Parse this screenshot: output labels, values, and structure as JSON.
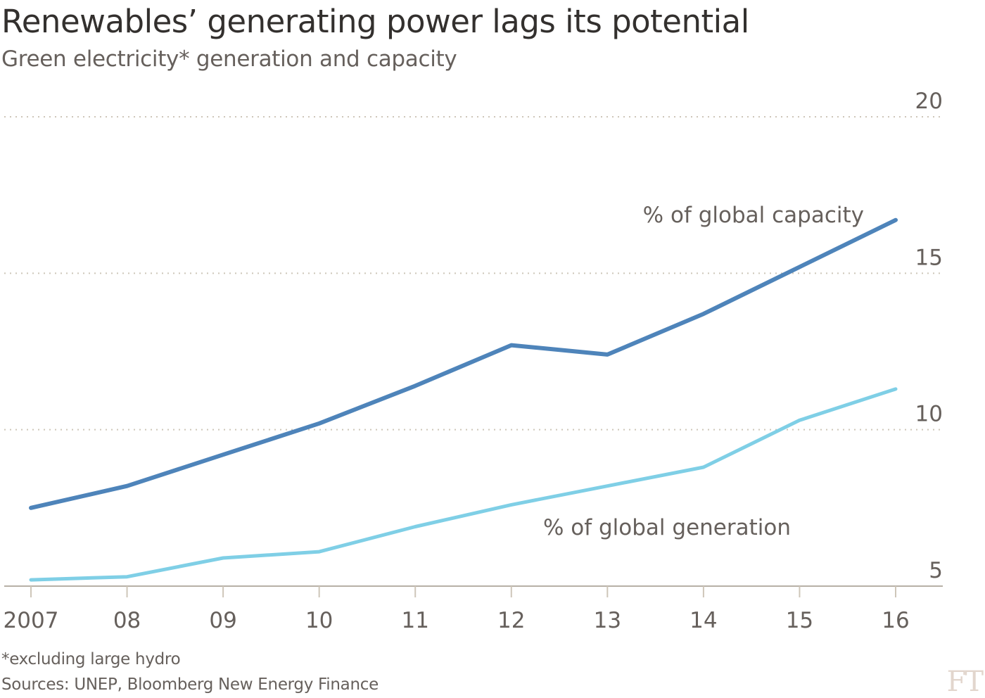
{
  "chart_data": {
    "type": "line",
    "title": "Renewables’ generating power lags its potential",
    "subtitle": "Green electricity* generation and capacity",
    "x": [
      "2007",
      "08",
      "09",
      "10",
      "11",
      "12",
      "13",
      "14",
      "15",
      "16"
    ],
    "series": [
      {
        "name": "% of global capacity",
        "color": "#4e84ba",
        "values": [
          7.5,
          8.2,
          9.2,
          10.2,
          11.4,
          12.7,
          12.4,
          13.7,
          15.2,
          16.7
        ]
      },
      {
        "name": "% of global generation",
        "color": "#7fcfe6",
        "values": [
          5.2,
          5.3,
          5.9,
          6.1,
          6.9,
          7.6,
          8.2,
          8.8,
          10.3,
          11.3
        ]
      }
    ],
    "yticks": [
      "5",
      "10",
      "15",
      "20"
    ],
    "ytick_values": [
      5,
      10,
      15,
      20
    ],
    "ylim": [
      5,
      20
    ],
    "xlabel": "",
    "ylabel": "",
    "grid": true,
    "y_axis_position": "right",
    "footnote": "*excluding large hydro",
    "source": "Sources: UNEP, Bloomberg New Energy Finance",
    "logo": "FT"
  }
}
